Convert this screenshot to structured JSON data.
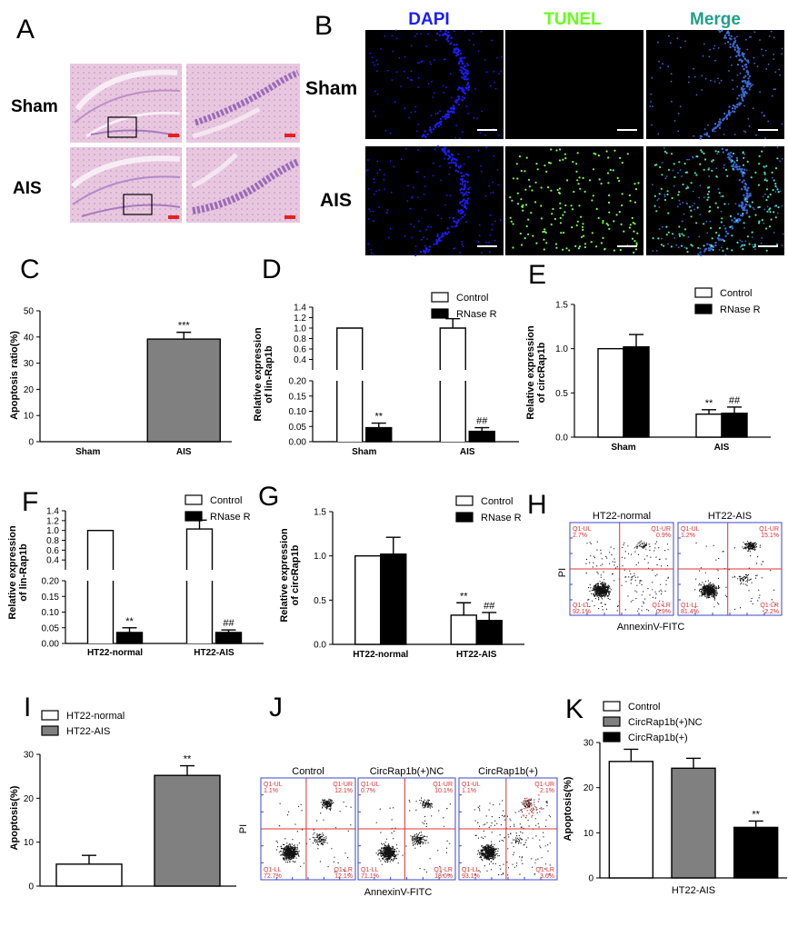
{
  "panel_letters": [
    "A",
    "B",
    "C",
    "D",
    "E",
    "F",
    "G",
    "H",
    "I",
    "J",
    "K"
  ],
  "panel_a": {
    "rows": [
      "Sham",
      "AIS"
    ]
  },
  "panel_b": {
    "columns": [
      "DAPI",
      "TUNEL",
      "Merge"
    ],
    "rows": [
      "Sham",
      "AIS"
    ],
    "column_colors": [
      "#1c1cff",
      "#66ff1a",
      "#1fa08a"
    ]
  },
  "flow_labels": {
    "ul": "Q1-UL",
    "ur": "Q1-UR",
    "ll": "Q1-LL",
    "lr": "Q1-LR",
    "y_axis": "PI",
    "x_axis": "AnnexinV-FITC"
  },
  "panel_h": {
    "plots": [
      {
        "title": "HT22-normal",
        "ul": "2.7%",
        "ur": "0.9%",
        "ll": "92.1%",
        "lr": "0.9%"
      },
      {
        "title": "HT22-AIS",
        "ul": "1.2%",
        "ur": "15.1%",
        "ll": "81.4%",
        "lr": "2.2%"
      }
    ]
  },
  "panel_j": {
    "plots": [
      {
        "title": "Control",
        "ul": "1.1%",
        "ur": "12.1%",
        "ll": "72.7%",
        "lr": "12.1%"
      },
      {
        "title": "CircRap1b(+)NC",
        "ul": "0.7%",
        "ur": "10.1%",
        "ll": "71.1%",
        "lr": "18.0%"
      },
      {
        "title": "CircRap1b(+)",
        "ul": "1.1%",
        "ur": "2.1%",
        "ll": "93.1%",
        "lr": "3.6%"
      }
    ]
  },
  "colors": {
    "control": "#ffffff",
    "rnase": "#000000",
    "grey": "#808080",
    "bar_stroke": "#000000",
    "flow_dots": "#111111",
    "flow_gate": "#e03030",
    "flow_axis": "#3a49c9"
  },
  "chart_data": [
    {
      "id": "C",
      "type": "bar",
      "ylabel": "Apoptosis ratio(%)",
      "categories": [
        "Sham",
        "AIS"
      ],
      "series": [
        {
          "values": [
            0,
            39.2
          ],
          "errors": [
            0,
            2.6
          ],
          "colors": [
            "#ffffff",
            "#808080"
          ],
          "sig": [
            "",
            "***"
          ]
        }
      ],
      "ylim": [
        0,
        50
      ],
      "yticks": [
        0,
        10,
        20,
        30,
        40,
        50
      ]
    },
    {
      "id": "D",
      "type": "bar",
      "ylabel": "Relative expression of lin-Rap1b",
      "categories": [
        "Sham",
        "AIS"
      ],
      "series": [
        {
          "name": "Control",
          "values": [
            1.0,
            1.0
          ],
          "errors": [
            0,
            0.18
          ],
          "sig": [
            "",
            ""
          ]
        },
        {
          "name": "RNase R",
          "values": [
            0.046,
            0.034
          ],
          "errors": [
            0.015,
            0.012
          ],
          "sig": [
            "**",
            "##"
          ]
        }
      ],
      "broken_axis": {
        "lower": [
          0,
          0.2
        ],
        "upper": [
          0.2,
          1.4
        ]
      },
      "yticks_lower": [
        0,
        0.05,
        0.1,
        0.15,
        0.2
      ],
      "yticks_upper": [
        0.4,
        0.6,
        0.8,
        1.0,
        1.2,
        1.4
      ]
    },
    {
      "id": "E",
      "type": "bar",
      "ylabel": "Relative expression of circRap1b",
      "categories": [
        "Sham",
        "AIS"
      ],
      "series": [
        {
          "name": "Control",
          "values": [
            1.0,
            0.26
          ],
          "errors": [
            0,
            0.05
          ],
          "sig": [
            "",
            "**"
          ]
        },
        {
          "name": "RNase R",
          "values": [
            1.02,
            0.27
          ],
          "errors": [
            0.14,
            0.07
          ],
          "sig": [
            "",
            "##"
          ]
        }
      ],
      "ylim": [
        0,
        1.5
      ],
      "yticks": [
        0.0,
        0.5,
        1.0,
        1.5
      ]
    },
    {
      "id": "F",
      "type": "bar",
      "ylabel": "Relative expression of lin-Rap1b",
      "categories": [
        "HT22-normal",
        "HT22-AIS"
      ],
      "series": [
        {
          "name": "Control",
          "values": [
            1.0,
            1.03
          ],
          "errors": [
            0,
            0.18
          ],
          "sig": [
            "",
            ""
          ]
        },
        {
          "name": "RNase R",
          "values": [
            0.035,
            0.035
          ],
          "errors": [
            0.015,
            0.008
          ],
          "sig": [
            "**",
            "##"
          ]
        }
      ],
      "broken_axis": {
        "lower": [
          0,
          0.2
        ],
        "upper": [
          0.2,
          1.4
        ]
      },
      "yticks_lower": [
        0.0,
        0.05,
        0.1,
        0.15,
        0.2
      ],
      "yticks_upper": [
        0.4,
        0.6,
        0.8,
        1.0,
        1.2,
        1.4
      ]
    },
    {
      "id": "G",
      "type": "bar",
      "ylabel": "Relative expression of circRap1b",
      "categories": [
        "HT22-normal",
        "HT22-AIS"
      ],
      "series": [
        {
          "name": "Control",
          "values": [
            1.0,
            0.33
          ],
          "errors": [
            0,
            0.14
          ],
          "sig": [
            "",
            "**"
          ]
        },
        {
          "name": "RNase R",
          "values": [
            1.02,
            0.27
          ],
          "errors": [
            0.19,
            0.09
          ],
          "sig": [
            "",
            "##"
          ]
        }
      ],
      "ylim": [
        0,
        1.5
      ],
      "yticks": [
        0.0,
        0.5,
        1.0,
        1.5
      ]
    },
    {
      "id": "I",
      "type": "bar",
      "ylabel": "Apoptosis(%)",
      "categories": [
        "HT22-normal",
        "HT22-AIS"
      ],
      "series": [
        {
          "values": [
            5.0,
            25.2
          ],
          "errors": [
            2.0,
            2.2
          ],
          "colors": [
            "#ffffff",
            "#808080"
          ],
          "sig": [
            "",
            "**"
          ]
        }
      ],
      "legend": [
        "HT22-normal",
        "HT22-AIS"
      ],
      "ylim": [
        0,
        30
      ],
      "yticks": [
        0,
        10,
        20,
        30
      ]
    },
    {
      "id": "K",
      "type": "bar",
      "ylabel": "Apoptosis(%)",
      "xlabel": "HT22-AIS",
      "categories": [
        "Control",
        "CircRap1b(+)NC",
        "CircRap1b(+)"
      ],
      "series": [
        {
          "values": [
            25.8,
            24.3,
            11.2
          ],
          "errors": [
            2.7,
            2.2,
            1.4
          ],
          "colors": [
            "#ffffff",
            "#808080",
            "#000000"
          ],
          "sig": [
            "",
            "",
            "**"
          ]
        }
      ],
      "legend": [
        "Control",
        "CircRap1b(+)NC",
        "CircRap1b(+)"
      ],
      "ylim": [
        0,
        30
      ],
      "yticks": [
        0,
        10,
        20,
        30
      ]
    }
  ]
}
